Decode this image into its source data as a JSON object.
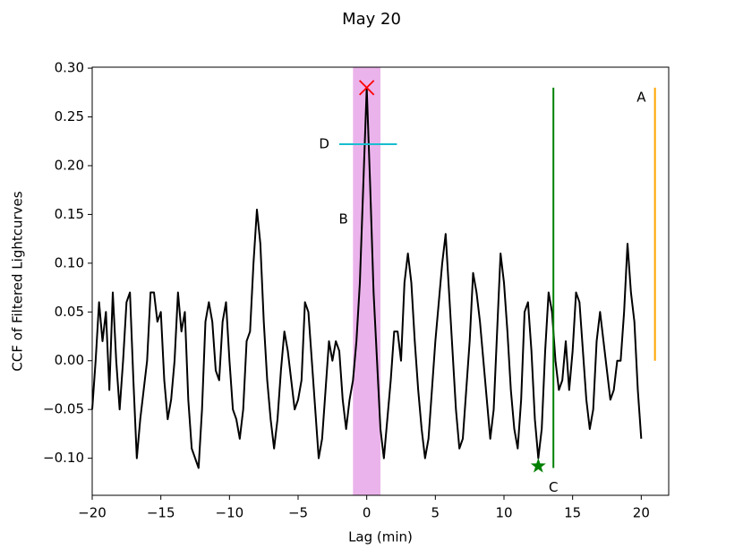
{
  "chart_data": {
    "type": "line",
    "title": "May 20",
    "x_label": "Lag (min)",
    "y_label": "CCF of Filtered Lightcurves",
    "color": "#000000",
    "x": [
      -20,
      -19.75,
      -19.5,
      -19.25,
      -19,
      -18.75,
      -18.5,
      -18.25,
      -18,
      -17.75,
      -17.5,
      -17.25,
      -17,
      -16.75,
      -16.5,
      -16.25,
      -16,
      -15.75,
      -15.5,
      -15.25,
      -15,
      -14.75,
      -14.5,
      -14.25,
      -14,
      -13.75,
      -13.5,
      -13.25,
      -13,
      -12.75,
      -12.5,
      -12.25,
      -12,
      -11.75,
      -11.5,
      -11.25,
      -11,
      -10.75,
      -10.5,
      -10.25,
      -10,
      -9.75,
      -9.5,
      -9.25,
      -9,
      -8.75,
      -8.5,
      -8.25,
      -8,
      -7.75,
      -7.5,
      -7.25,
      -7,
      -6.75,
      -6.5,
      -6.25,
      -6,
      -5.75,
      -5.5,
      -5.25,
      -5,
      -4.75,
      -4.5,
      -4.25,
      -4,
      -3.75,
      -3.5,
      -3.25,
      -3,
      -2.75,
      -2.5,
      -2.25,
      -2,
      -1.75,
      -1.5,
      -1.25,
      -1,
      -0.75,
      -0.5,
      -0.25,
      0,
      0.25,
      0.5,
      0.75,
      1,
      1.25,
      1.5,
      1.75,
      2,
      2.25,
      2.5,
      2.75,
      3,
      3.25,
      3.5,
      3.75,
      4,
      4.25,
      4.5,
      4.75,
      5,
      5.25,
      5.5,
      5.75,
      6,
      6.25,
      6.5,
      6.75,
      7,
      7.25,
      7.5,
      7.75,
      8,
      8.25,
      8.5,
      8.75,
      9,
      9.25,
      9.5,
      9.75,
      10,
      10.25,
      10.5,
      10.75,
      11,
      11.25,
      11.5,
      11.75,
      12,
      12.25,
      12.5,
      12.75,
      13,
      13.25,
      13.5,
      13.75,
      14,
      14.25,
      14.5,
      14.75,
      15,
      15.25,
      15.5,
      15.75,
      16,
      16.25,
      16.5,
      16.75,
      17,
      17.25,
      17.5,
      17.75,
      18,
      18.25,
      18.5,
      18.75,
      19,
      19.25,
      19.5,
      19.75,
      20
    ],
    "values": [
      -0.05,
      0.0,
      0.06,
      0.02,
      0.05,
      -0.03,
      0.07,
      0.0,
      -0.05,
      0.0,
      0.06,
      0.07,
      -0.02,
      -0.1,
      -0.06,
      -0.03,
      0.0,
      0.07,
      0.07,
      0.04,
      0.05,
      -0.02,
      -0.06,
      -0.04,
      0.0,
      0.07,
      0.03,
      0.05,
      -0.04,
      -0.09,
      -0.1,
      -0.11,
      -0.05,
      0.04,
      0.06,
      0.04,
      -0.01,
      -0.02,
      0.04,
      0.06,
      0.0,
      -0.05,
      -0.06,
      -0.08,
      -0.05,
      0.02,
      0.03,
      0.1,
      0.155,
      0.12,
      0.04,
      -0.02,
      -0.06,
      -0.09,
      -0.06,
      -0.01,
      0.03,
      0.01,
      -0.02,
      -0.05,
      -0.04,
      -0.02,
      0.06,
      0.05,
      0.0,
      -0.05,
      -0.1,
      -0.08,
      -0.03,
      0.02,
      0.0,
      0.02,
      0.01,
      -0.04,
      -0.07,
      -0.04,
      -0.02,
      0.02,
      0.08,
      0.18,
      0.28,
      0.18,
      0.07,
      0.0,
      -0.07,
      -0.1,
      -0.06,
      -0.02,
      0.03,
      0.03,
      0.0,
      0.08,
      0.11,
      0.08,
      0.02,
      -0.03,
      -0.07,
      -0.1,
      -0.08,
      -0.03,
      0.02,
      0.06,
      0.1,
      0.13,
      0.07,
      0.01,
      -0.05,
      -0.09,
      -0.08,
      -0.03,
      0.02,
      0.09,
      0.07,
      0.04,
      0.0,
      -0.04,
      -0.08,
      -0.05,
      0.03,
      0.11,
      0.08,
      0.03,
      -0.03,
      -0.07,
      -0.09,
      -0.04,
      0.05,
      0.06,
      0.01,
      -0.06,
      -0.1,
      -0.07,
      0.01,
      0.07,
      0.05,
      0.0,
      -0.03,
      -0.02,
      0.02,
      -0.03,
      0.01,
      0.07,
      0.06,
      0.01,
      -0.04,
      -0.07,
      -0.05,
      0.02,
      0.05,
      0.02,
      -0.01,
      -0.04,
      -0.03,
      0.0,
      0.0,
      0.05,
      0.12,
      0.07,
      0.04,
      -0.03,
      -0.08
    ],
    "xlim": [
      -20,
      22
    ],
    "ylim": [
      -0.138,
      0.301
    ],
    "xticks": [
      {
        "value": -20,
        "label": "−20"
      },
      {
        "value": -15,
        "label": "−15"
      },
      {
        "value": -10,
        "label": "−10"
      },
      {
        "value": -5,
        "label": "−5"
      },
      0,
      5,
      10,
      15,
      20
    ],
    "yticks": [
      {
        "value": -0.1,
        "label": "−0.10"
      },
      {
        "value": -0.05,
        "label": "−0.05"
      },
      {
        "value": 0,
        "label": "0.00"
      },
      {
        "value": 0.05,
        "label": "0.05"
      },
      {
        "value": 0.1,
        "label": "0.10"
      },
      {
        "value": 0.15,
        "label": "0.15"
      },
      {
        "value": 0.2,
        "label": "0.20"
      },
      {
        "value": 0.25,
        "label": "0.25"
      },
      {
        "value": 0.3,
        "label": "0.30"
      }
    ],
    "vspans": [
      {
        "xmin": -1,
        "xmax": 1,
        "color": "#e8a6e8"
      }
    ],
    "vlines": [
      {
        "x": 13.6,
        "ymin": -0.11,
        "ymax": 0.28,
        "color": "#008000"
      },
      {
        "x": 21,
        "ymin": 0,
        "ymax": 0.28,
        "color": "#ffa500"
      }
    ],
    "hlines": [
      {
        "y": 0.222,
        "xmin": -2,
        "xmax": 2.2,
        "color": "#17becf"
      }
    ],
    "markers": [
      {
        "x": 0,
        "y": 0.28,
        "marker": "x",
        "color": "#ff0000"
      },
      {
        "x": 12.5,
        "y": -0.108,
        "marker": "star",
        "color": "#008000"
      }
    ],
    "annotations": [
      {
        "text": "A",
        "x": 20,
        "y": 0.27
      },
      {
        "text": "B",
        "x": -1.7,
        "y": 0.145
      },
      {
        "text": "C",
        "x": 13.6,
        "y": -0.13
      },
      {
        "text": "D",
        "x": -3.1,
        "y": 0.222
      }
    ]
  }
}
